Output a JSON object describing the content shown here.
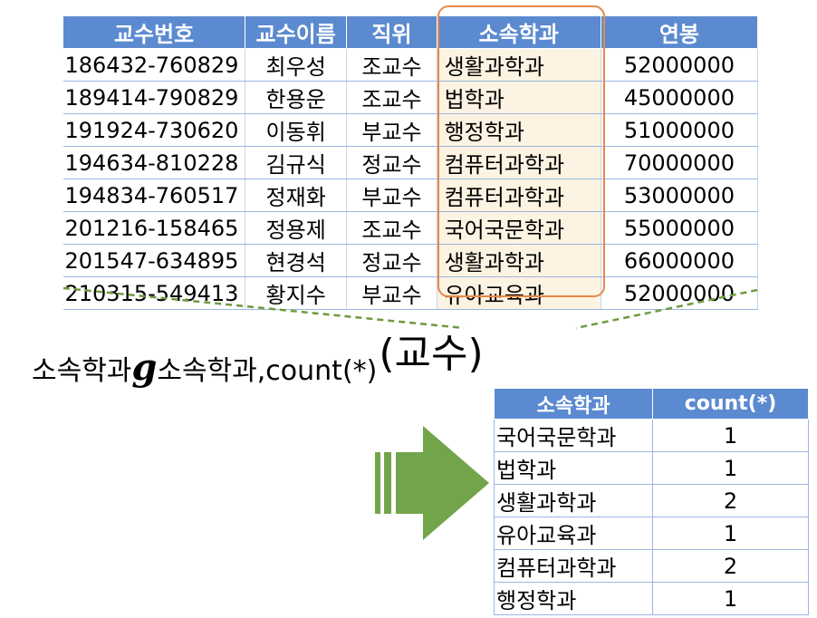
{
  "professor_table": {
    "headers": [
      "교수번호",
      "교수이름",
      "직위",
      "소속학과",
      "연봉"
    ],
    "rows": [
      [
        "186432-760829",
        "최우성",
        "조교수",
        "생활과학과",
        "52000000"
      ],
      [
        "189414-790829",
        "한용운",
        "조교수",
        "법학과",
        "45000000"
      ],
      [
        "191924-730620",
        "이동휘",
        "부교수",
        "행정학과",
        "51000000"
      ],
      [
        "194634-810228",
        "김규식",
        "정교수",
        "컴퓨터과학과",
        "70000000"
      ],
      [
        "194834-760517",
        "정재화",
        "부교수",
        "컴퓨터과학과",
        "53000000"
      ],
      [
        "201216-158465",
        "정용제",
        "조교수",
        "국어국문학과",
        "55000000"
      ],
      [
        "201547-634895",
        "현경석",
        "정교수",
        "생활과학과",
        "66000000"
      ],
      [
        "210315-549413",
        "황지수",
        "부교수",
        "유아교육과",
        "52000000"
      ]
    ]
  },
  "expression": {
    "group_attr": "소속학과",
    "symbol": "g",
    "agg_attrs": "소속학과,count(*)",
    "argument": "(교수)"
  },
  "result_table": {
    "headers": [
      "소속학과",
      "count(*)"
    ],
    "rows": [
      [
        "국어국문학과",
        "1"
      ],
      [
        "법학과",
        "1"
      ],
      [
        "생활과학과",
        "2"
      ],
      [
        "유아교육과",
        "1"
      ],
      [
        "컴퓨터과학과",
        "2"
      ],
      [
        "행정학과",
        "1"
      ]
    ]
  },
  "colors": {
    "header_fill": "#5b8ad0",
    "highlight_border": "#e8894a",
    "highlight_fill": "#fdf3e2",
    "arrow": "#72a54a",
    "dashed_line": "#6f9a3e"
  }
}
